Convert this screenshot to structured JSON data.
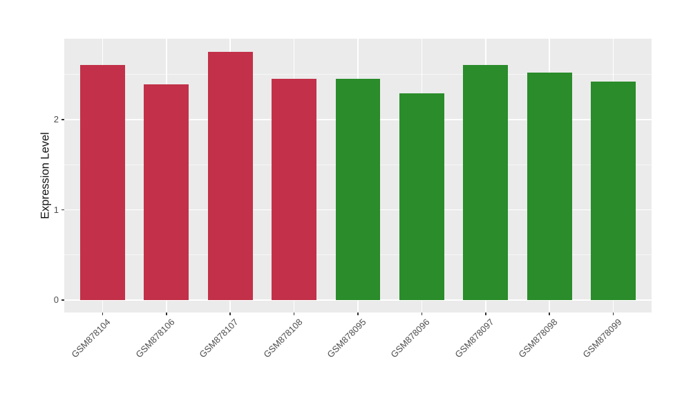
{
  "chart_data": {
    "type": "bar",
    "title": "",
    "xlabel": "",
    "ylabel": "Expression Level",
    "categories": [
      "GSM878104",
      "GSM878106",
      "GSM878107",
      "GSM878108",
      "GSM878095",
      "GSM878096",
      "GSM878097",
      "GSM878098",
      "GSM878099"
    ],
    "values": [
      2.61,
      2.39,
      2.75,
      2.45,
      2.45,
      2.29,
      2.61,
      2.52,
      2.42
    ],
    "groups": [
      "red",
      "red",
      "red",
      "red",
      "green",
      "green",
      "green",
      "green",
      "green"
    ],
    "group_colors": {
      "red": "#C23149",
      "green": "#2A8C2A"
    },
    "yticks": [
      0,
      1,
      2
    ],
    "ytick_labels": [
      "0",
      "1",
      "2"
    ],
    "yticks_minor": [
      0.5,
      1.5,
      2.5
    ],
    "ylim": [
      -0.138,
      2.898
    ],
    "bar_width_fraction": 0.7,
    "panel_background": "#EBEBEB",
    "grid_major_color": "#FFFFFF",
    "grid_minor_color": "rgba(255,255,255,0.62)",
    "tick_mark_color": "#333333",
    "axis_text_color": "#4D4D4D",
    "axis_title_color": "#111111",
    "legend_position": "none",
    "grid": "horizontal major+minor, vertical major at bar centers"
  }
}
